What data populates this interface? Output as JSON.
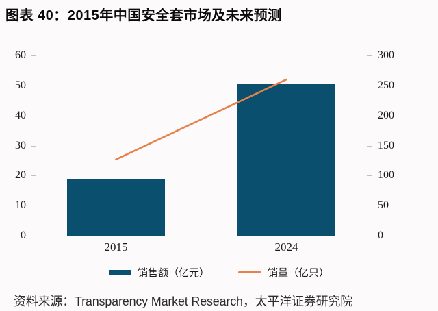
{
  "title": "图表 40：2015年中国安全套市场及未来预测",
  "source": "资料来源：Transparency Market Research，太平洋证券研究院",
  "colors": {
    "bar": "#0a4f6d",
    "line": "#e6814b",
    "axis": "#c9c7c8",
    "text": "#1a1a1a",
    "background": "#fdfafb"
  },
  "legend": {
    "bar_label": "销售额（亿元）",
    "line_label": "销量（亿只）"
  },
  "chart_data": {
    "type": "bar",
    "subtype": "bar+line dual axis",
    "title": "2015年中国安全套市场及未来预测",
    "categories": [
      "2015",
      "2024"
    ],
    "series": [
      {
        "name": "销售额（亿元）",
        "type": "bar",
        "axis": "left",
        "values": [
          19,
          50.5
        ]
      },
      {
        "name": "销量（亿只）",
        "type": "line",
        "axis": "right",
        "values": [
          127,
          260
        ]
      }
    ],
    "left_axis": {
      "min": 0,
      "max": 60,
      "step": 10,
      "ticks": [
        "0",
        "10",
        "20",
        "30",
        "40",
        "50",
        "60"
      ]
    },
    "right_axis": {
      "min": 0,
      "max": 300,
      "step": 50,
      "ticks": [
        "0",
        "50",
        "100",
        "150",
        "200",
        "250",
        "300"
      ]
    },
    "grid": false,
    "legend_position": "bottom"
  }
}
